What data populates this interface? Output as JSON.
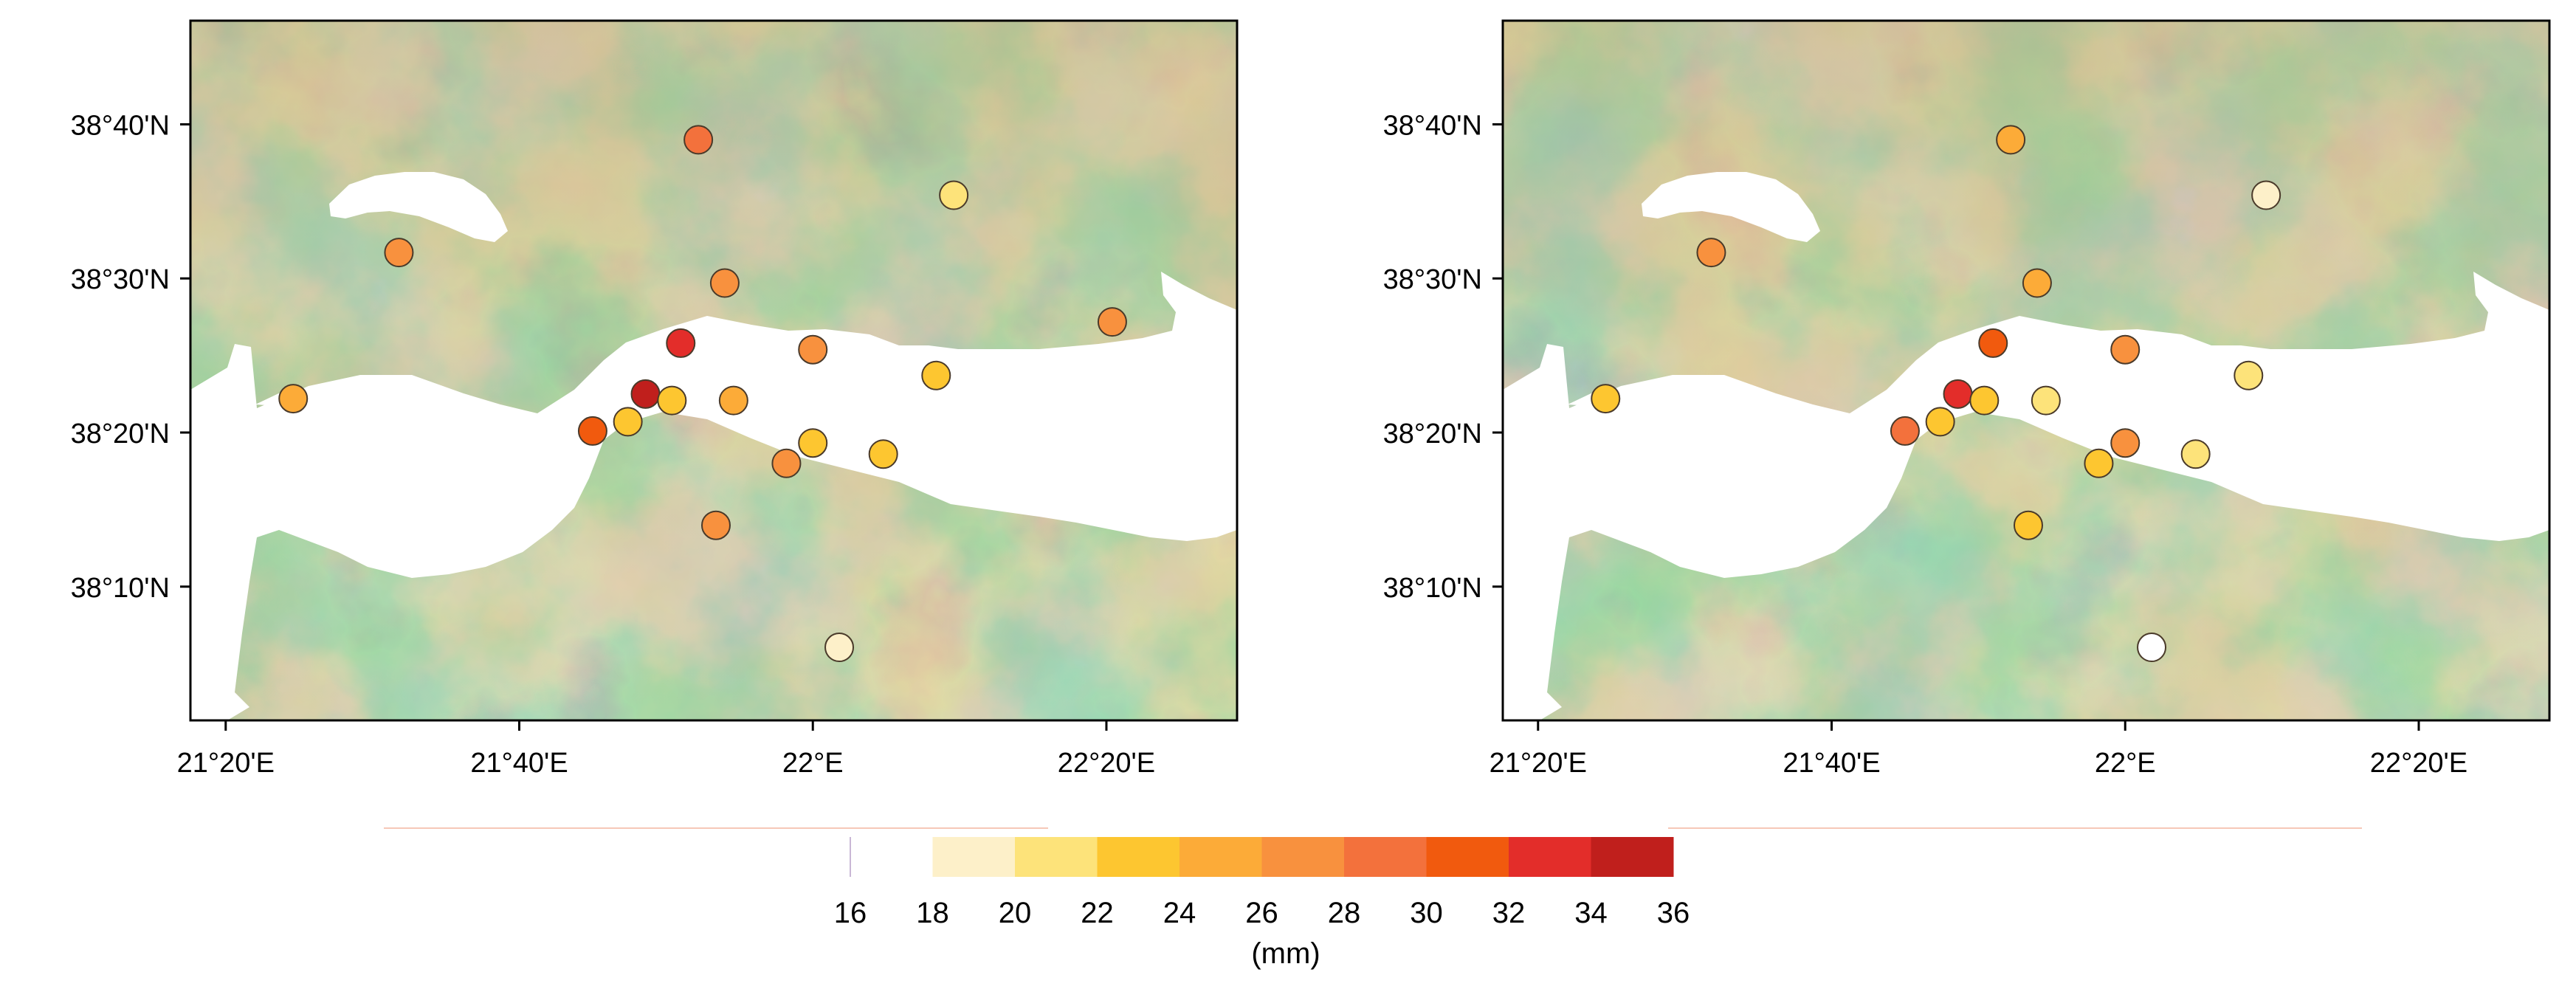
{
  "panels": [
    {
      "id": "left",
      "lat_ticks": [
        "38°40'N",
        "38°30'N",
        "38°20'N",
        "38°10'N"
      ],
      "lon_ticks": [
        "21°20'E",
        "21°40'E",
        "22°E",
        "22°20'E"
      ],
      "stations": [
        {
          "lon": 21.87,
          "lat": 38.65,
          "value": 28.5
        },
        {
          "lon": 22.16,
          "lat": 38.59,
          "value": 21.0
        },
        {
          "lon": 21.53,
          "lat": 38.528,
          "value": 27.5
        },
        {
          "lon": 21.9,
          "lat": 38.495,
          "value": 26.5
        },
        {
          "lon": 22.34,
          "lat": 38.453,
          "value": 26.5
        },
        {
          "lon": 21.85,
          "lat": 38.43,
          "value": 33.5
        },
        {
          "lon": 22.0,
          "lat": 38.423,
          "value": 26.5
        },
        {
          "lon": 22.14,
          "lat": 38.395,
          "value": 23.0
        },
        {
          "lon": 21.41,
          "lat": 38.37,
          "value": 25.5
        },
        {
          "lon": 21.81,
          "lat": 38.375,
          "value": 34.5
        },
        {
          "lon": 21.84,
          "lat": 38.368,
          "value": 22.5
        },
        {
          "lon": 21.91,
          "lat": 38.368,
          "value": 25.0
        },
        {
          "lon": 21.79,
          "lat": 38.345,
          "value": 23.0
        },
        {
          "lon": 21.75,
          "lat": 38.335,
          "value": 31.0
        },
        {
          "lon": 22.0,
          "lat": 38.322,
          "value": 23.5
        },
        {
          "lon": 21.97,
          "lat": 38.3,
          "value": 26.5
        },
        {
          "lon": 22.08,
          "lat": 38.31,
          "value": 23.5
        },
        {
          "lon": 21.89,
          "lat": 38.233,
          "value": 26.5
        },
        {
          "lon": 22.03,
          "lat": 38.101,
          "value": 18.5
        }
      ]
    },
    {
      "id": "right",
      "lat_ticks": [
        "38°40'N",
        "38°30'N",
        "38°20'N",
        "38°10'N"
      ],
      "lon_ticks": [
        "21°20'E",
        "21°40'E",
        "22°E",
        "22°20'E"
      ],
      "stations": [
        {
          "lon": 21.87,
          "lat": 38.65,
          "value": 25.0
        },
        {
          "lon": 22.16,
          "lat": 38.59,
          "value": 18.5
        },
        {
          "lon": 21.53,
          "lat": 38.528,
          "value": 27.5
        },
        {
          "lon": 21.9,
          "lat": 38.495,
          "value": 25.5
        },
        {
          "lon": 22.14,
          "lat": 38.395,
          "value": 21.0
        },
        {
          "lon": 21.85,
          "lat": 38.43,
          "value": 31.0
        },
        {
          "lon": 22.0,
          "lat": 38.423,
          "value": 26.5
        },
        {
          "lon": 21.41,
          "lat": 38.37,
          "value": 23.0
        },
        {
          "lon": 21.81,
          "lat": 38.375,
          "value": 33.5
        },
        {
          "lon": 21.84,
          "lat": 38.368,
          "value": 22.5
        },
        {
          "lon": 21.91,
          "lat": 38.368,
          "value": 20.5
        },
        {
          "lon": 21.79,
          "lat": 38.345,
          "value": 22.5
        },
        {
          "lon": 21.75,
          "lat": 38.335,
          "value": 29.5
        },
        {
          "lon": 22.0,
          "lat": 38.322,
          "value": 26.5
        },
        {
          "lon": 21.97,
          "lat": 38.3,
          "value": 23.0
        },
        {
          "lon": 22.08,
          "lat": 38.31,
          "value": 21.5
        },
        {
          "lon": 21.89,
          "lat": 38.233,
          "value": 23.0
        },
        {
          "lon": 22.03,
          "lat": 38.101,
          "value": 16.5
        }
      ]
    }
  ],
  "colorbar": {
    "ticks": [
      "16",
      "18",
      "20",
      "22",
      "24",
      "26",
      "28",
      "30",
      "32",
      "34",
      "36"
    ],
    "colors": [
      "#ffffff",
      "#fdf0c9",
      "#fde37a",
      "#fdc630",
      "#fcab38",
      "#f8913e",
      "#f3713c",
      "#f15a0e",
      "#e32d2a",
      "#c01f1c"
    ],
    "label": "(mm)"
  },
  "colors": {
    "sea": "#ffffff",
    "terrain_low": "#4d9a5c",
    "terrain_mid": "#b3b36a",
    "terrain_high": "#b9857a",
    "frame": "#000000"
  }
}
